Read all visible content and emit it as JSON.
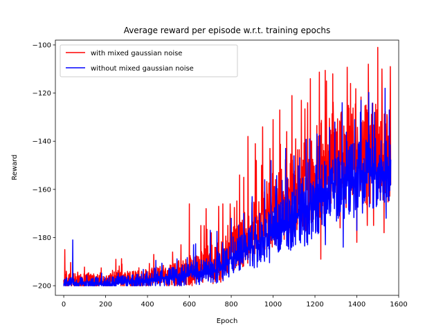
{
  "chart_data": {
    "type": "line",
    "title": "Average reward per episode w.r.t. training epochs",
    "xlabel": "Epoch",
    "ylabel": "Reward",
    "xlim": [
      -40,
      1600
    ],
    "ylim": [
      -204,
      -98
    ],
    "xticks": [
      0,
      200,
      400,
      600,
      800,
      1000,
      1200,
      1400,
      1600
    ],
    "yticks": [
      -200,
      -180,
      -160,
      -140,
      -120,
      -100
    ],
    "grid": false,
    "legend_position": "top-left",
    "n_points": 1563,
    "series": [
      {
        "name": "with mixed gaussian noise",
        "color": "#ff0000",
        "trend": {
          "x": [
            0,
            200,
            400,
            550,
            650,
            750,
            850,
            950,
            1050,
            1150,
            1250,
            1350,
            1450,
            1560
          ],
          "y": [
            -198,
            -198,
            -197,
            -195,
            -193,
            -190,
            -182,
            -172,
            -165,
            -158,
            -150,
            -147,
            -145,
            -146
          ]
        },
        "spread": {
          "x": [
            0,
            400,
            600,
            800,
            1000,
            1200,
            1400,
            1560
          ],
          "y": [
            4,
            5,
            8,
            12,
            20,
            26,
            28,
            26
          ]
        },
        "peaks": [
          {
            "x": 1500,
            "y": -101
          },
          {
            "x": 1455,
            "y": -108
          },
          {
            "x": 1560,
            "y": -109
          },
          {
            "x": 1520,
            "y": -110
          },
          {
            "x": 1285,
            "y": -112
          },
          {
            "x": 1178,
            "y": -114
          },
          {
            "x": 1255,
            "y": -115
          },
          {
            "x": 1370,
            "y": -116
          },
          {
            "x": 1090,
            "y": -121
          },
          {
            "x": 1135,
            "y": -123
          },
          {
            "x": 1032,
            "y": -127
          },
          {
            "x": 1000,
            "y": -131
          },
          {
            "x": 950,
            "y": -134
          },
          {
            "x": 1065,
            "y": -136
          },
          {
            "x": 880,
            "y": -138
          },
          {
            "x": 1108,
            "y": -139
          },
          {
            "x": 915,
            "y": -141
          },
          {
            "x": 985,
            "y": -143
          },
          {
            "x": 1165,
            "y": -124
          },
          {
            "x": 920,
            "y": -148
          },
          {
            "x": 840,
            "y": -154
          },
          {
            "x": 860,
            "y": -155
          },
          {
            "x": 945,
            "y": -150
          },
          {
            "x": 760,
            "y": -166
          },
          {
            "x": 795,
            "y": -166
          },
          {
            "x": 740,
            "y": -167
          },
          {
            "x": 600,
            "y": -166
          },
          {
            "x": 680,
            "y": -168
          },
          {
            "x": 655,
            "y": -175
          },
          {
            "x": 705,
            "y": -178
          },
          {
            "x": 560,
            "y": -183
          },
          {
            "x": 520,
            "y": -186
          },
          {
            "x": 430,
            "y": -187
          },
          {
            "x": 5,
            "y": -185
          }
        ],
        "troughs": [
          {
            "x": 1228,
            "y": -189
          },
          {
            "x": 1400,
            "y": -182
          },
          {
            "x": 1320,
            "y": -176
          },
          {
            "x": 1480,
            "y": -175
          },
          {
            "x": 1450,
            "y": -175
          },
          {
            "x": 1530,
            "y": -178
          }
        ]
      },
      {
        "name": "without mixed gaussian noise",
        "color": "#0000ff",
        "trend": {
          "x": [
            0,
            200,
            400,
            550,
            650,
            750,
            850,
            950,
            1050,
            1150,
            1250,
            1350,
            1450,
            1560
          ],
          "y": [
            -199,
            -199,
            -198,
            -196,
            -195,
            -192,
            -187,
            -182,
            -176,
            -170,
            -162,
            -157,
            -154,
            -152
          ]
        },
        "spread": {
          "x": [
            0,
            400,
            600,
            800,
            1000,
            1200,
            1400,
            1560
          ],
          "y": [
            3,
            4,
            6,
            9,
            14,
            18,
            20,
            18
          ]
        },
        "peaks": [
          {
            "x": 43,
            "y": -181
          },
          {
            "x": 1420,
            "y": -123
          },
          {
            "x": 1535,
            "y": -118
          },
          {
            "x": 1330,
            "y": -124
          },
          {
            "x": 1555,
            "y": -127
          },
          {
            "x": 1485,
            "y": -128
          },
          {
            "x": 1390,
            "y": -131
          },
          {
            "x": 1295,
            "y": -132
          },
          {
            "x": 1175,
            "y": -139
          },
          {
            "x": 1210,
            "y": -137
          },
          {
            "x": 1250,
            "y": -140
          },
          {
            "x": 1100,
            "y": -146
          },
          {
            "x": 1060,
            "y": -143
          },
          {
            "x": 990,
            "y": -148
          },
          {
            "x": 960,
            "y": -156
          },
          {
            "x": 900,
            "y": -163
          },
          {
            "x": 860,
            "y": -170
          },
          {
            "x": 800,
            "y": -172
          },
          {
            "x": 700,
            "y": -177
          },
          {
            "x": 620,
            "y": -183
          }
        ],
        "troughs": [
          {
            "x": 1335,
            "y": -184
          },
          {
            "x": 1165,
            "y": -183
          },
          {
            "x": 1250,
            "y": -183
          },
          {
            "x": 1400,
            "y": -177
          },
          {
            "x": 1540,
            "y": -172
          }
        ]
      }
    ]
  }
}
